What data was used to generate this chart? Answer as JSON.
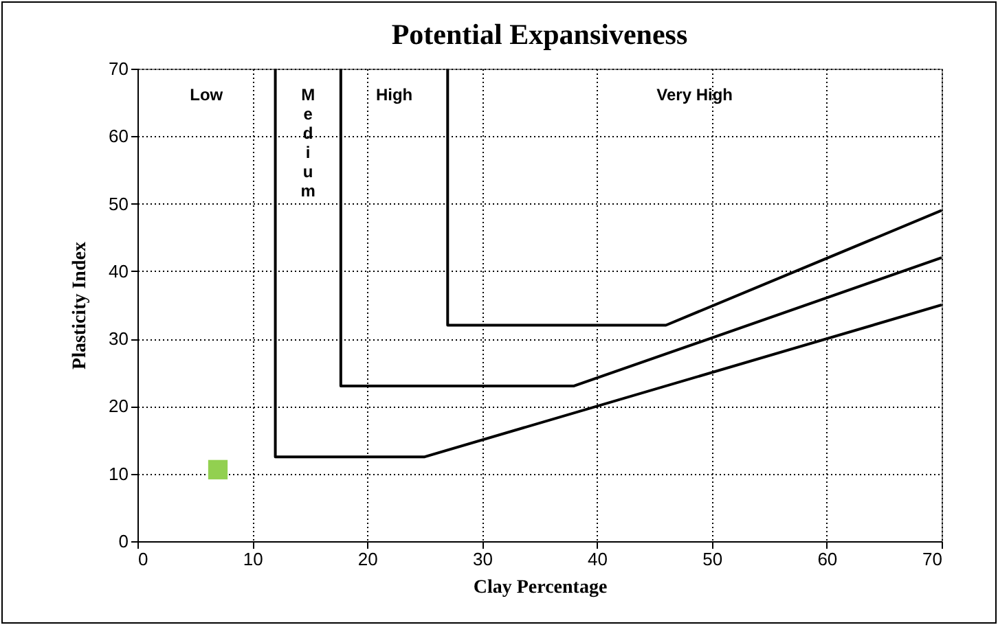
{
  "chart_data": {
    "type": "line",
    "title": "Potential Expansiveness",
    "xlabel": "Clay Percentage",
    "ylabel": "Plasticity Index",
    "xlim": [
      0,
      70
    ],
    "ylim": [
      0,
      70
    ],
    "xticks": [
      0,
      10,
      20,
      30,
      40,
      50,
      60,
      70
    ],
    "yticks": [
      0,
      10,
      20,
      30,
      40,
      50,
      60,
      70
    ],
    "grid": true,
    "series": [
      {
        "color": "#000000",
        "x": [
          12,
          12,
          25,
          70
        ],
        "values": [
          70,
          12.5,
          12.5,
          35
        ],
        "line_style": "solid",
        "marker": "none"
      },
      {
        "color": "#000000",
        "x": [
          17.7,
          17.7,
          38,
          70
        ],
        "values": [
          70,
          23,
          23,
          42
        ],
        "line_style": "solid",
        "marker": "none"
      },
      {
        "color": "#000000",
        "x": [
          27,
          27,
          46,
          70
        ],
        "values": [
          70,
          32,
          32,
          49
        ],
        "line_style": "solid",
        "marker": "none"
      },
      {
        "type": "scatter",
        "color": "#92d050",
        "x": [
          7
        ],
        "values": [
          10.6
        ],
        "marker": "square"
      }
    ],
    "annotations": [
      "Low",
      "Medium",
      "High",
      "Very High"
    ]
  }
}
